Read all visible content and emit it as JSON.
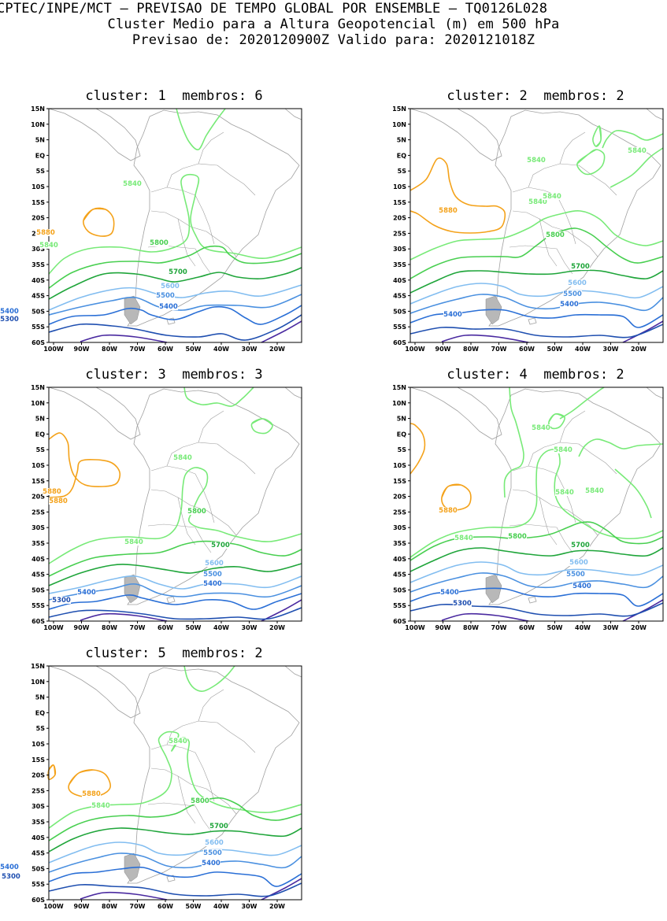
{
  "header": {
    "line1": "CPTEC/INPE/MCT – PREVISAO DE TEMPO GLOBAL POR ENSEMBLE – TQ0126L028",
    "line2": "Cluster Medio para a Altura Geopotencial (m) em 500 hPa",
    "line3": "Previsao de: 2020120900Z    Valido para: 2020121018Z"
  },
  "axes": {
    "lat_labels": [
      "15N",
      "10N",
      "5N",
      "EQ",
      "5S",
      "10S",
      "15S",
      "20S",
      "25S",
      "30S",
      "35S",
      "40S",
      "45S",
      "50S",
      "55S",
      "60S"
    ],
    "lon_labels": [
      "100W",
      "90W",
      "80W",
      "70W",
      "60W",
      "50W",
      "40W",
      "30W",
      "20W"
    ]
  },
  "contour_colors": {
    "5300": "#1f4fb0",
    "5400": "#2a6fd6",
    "5500": "#4a90e0",
    "5600": "#82bdf0",
    "5700": "#1fa53a",
    "5800": "#48cf50",
    "5840": "#78ea78",
    "5880": "#f4a21a",
    "deep": "#4a2aa0",
    "coast": "#a0a0a0"
  },
  "panels": [
    {
      "cluster_label": "cluster: 1",
      "members_label": "membros: 6",
      "contour_labels": [
        {
          "text": "5880",
          "c": "5880"
        },
        {
          "text": "5840",
          "c": "5840"
        },
        {
          "text": "5840",
          "c": "5840"
        },
        {
          "text": "5800",
          "c": "5800"
        },
        {
          "text": "5700",
          "c": "5700"
        },
        {
          "text": "5600",
          "c": "5600"
        },
        {
          "text": "5500",
          "c": "5500"
        },
        {
          "text": "5400",
          "c": "5400"
        },
        {
          "text": "5400",
          "c": "5400"
        },
        {
          "text": "5300",
          "c": "5300"
        }
      ]
    },
    {
      "cluster_label": "cluster: 2",
      "members_label": "membros: 2",
      "contour_labels": [
        {
          "text": "5880",
          "c": "5880"
        },
        {
          "text": "5840",
          "c": "5840"
        },
        {
          "text": "5840",
          "c": "5840"
        },
        {
          "text": "5840",
          "c": "5840"
        },
        {
          "text": "5840",
          "c": "5840"
        },
        {
          "text": "5800",
          "c": "5800"
        },
        {
          "text": "5700",
          "c": "5700"
        },
        {
          "text": "5600",
          "c": "5600"
        },
        {
          "text": "5500",
          "c": "5500"
        },
        {
          "text": "5400",
          "c": "5400"
        },
        {
          "text": "5400",
          "c": "5400"
        }
      ]
    },
    {
      "cluster_label": "cluster: 3",
      "members_label": "membros: 3",
      "contour_labels": [
        {
          "text": "5880",
          "c": "5880"
        },
        {
          "text": "5880",
          "c": "5880"
        },
        {
          "text": "5840",
          "c": "5840"
        },
        {
          "text": "5840",
          "c": "5840"
        },
        {
          "text": "5800",
          "c": "5800"
        },
        {
          "text": "5700",
          "c": "5700"
        },
        {
          "text": "5600",
          "c": "5600"
        },
        {
          "text": "5500",
          "c": "5500"
        },
        {
          "text": "5400",
          "c": "5400"
        },
        {
          "text": "5400",
          "c": "5400"
        },
        {
          "text": "5300",
          "c": "5300"
        }
      ]
    },
    {
      "cluster_label": "cluster: 4",
      "members_label": "membros: 2",
      "contour_labels": [
        {
          "text": "5880",
          "c": "5880"
        },
        {
          "text": "5840",
          "c": "5840"
        },
        {
          "text": "5840",
          "c": "5840"
        },
        {
          "text": "5840",
          "c": "5840"
        },
        {
          "text": "5840",
          "c": "5840"
        },
        {
          "text": "5840",
          "c": "5840"
        },
        {
          "text": "5800",
          "c": "5800"
        },
        {
          "text": "5700",
          "c": "5700"
        },
        {
          "text": "5600",
          "c": "5600"
        },
        {
          "text": "5500",
          "c": "5500"
        },
        {
          "text": "5400",
          "c": "5400"
        },
        {
          "text": "5400",
          "c": "5400"
        },
        {
          "text": "5300",
          "c": "5300"
        }
      ]
    },
    {
      "cluster_label": "cluster: 5",
      "members_label": "membros: 2",
      "contour_labels": [
        {
          "text": "5880",
          "c": "5880"
        },
        {
          "text": "5840",
          "c": "5840"
        },
        {
          "text": "5840",
          "c": "5840"
        },
        {
          "text": "5800",
          "c": "5800"
        },
        {
          "text": "5700",
          "c": "5700"
        },
        {
          "text": "5600",
          "c": "5600"
        },
        {
          "text": "5500",
          "c": "5500"
        },
        {
          "text": "5400",
          "c": "5400"
        },
        {
          "text": "5400",
          "c": "5400"
        },
        {
          "text": "5300",
          "c": "5300"
        }
      ]
    }
  ]
}
